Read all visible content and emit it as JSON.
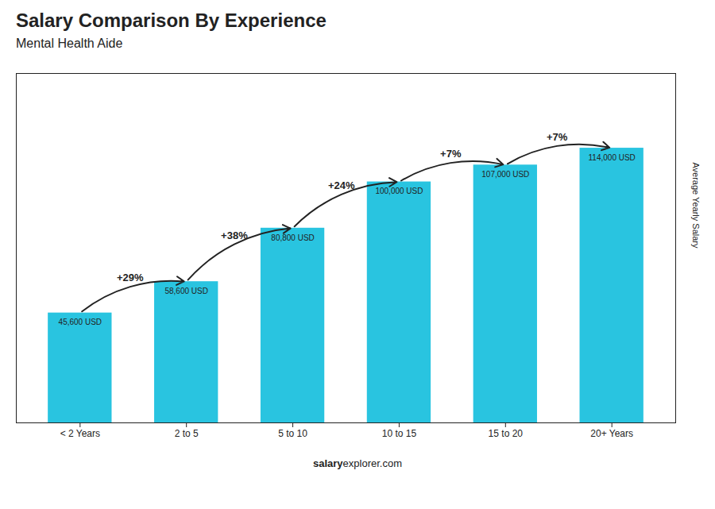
{
  "chart_data": {
    "type": "bar",
    "title": "Salary Comparison By Experience",
    "subtitle": "Mental Health Aide",
    "ylabel": "Average Yearly Salary",
    "categories": [
      "< 2 Years",
      "2 to 5",
      "5 to 10",
      "10 to 15",
      "15 to 20",
      "20+ Years"
    ],
    "values": [
      45600,
      58600,
      80800,
      100000,
      107000,
      114000
    ],
    "value_labels": [
      "45,600 USD",
      "58,600 USD",
      "80,800 USD",
      "100,000 USD",
      "107,000 USD",
      "114,000 USD"
    ],
    "data_labels": true,
    "annotations": [
      "+29%",
      "+38%",
      "+24%",
      "+7%",
      "+7%"
    ],
    "footer": [
      "salary",
      "explorer.com"
    ],
    "color": "#29c4e0",
    "ylim": [
      0,
      145000
    ],
    "tick_labels": "x"
  }
}
